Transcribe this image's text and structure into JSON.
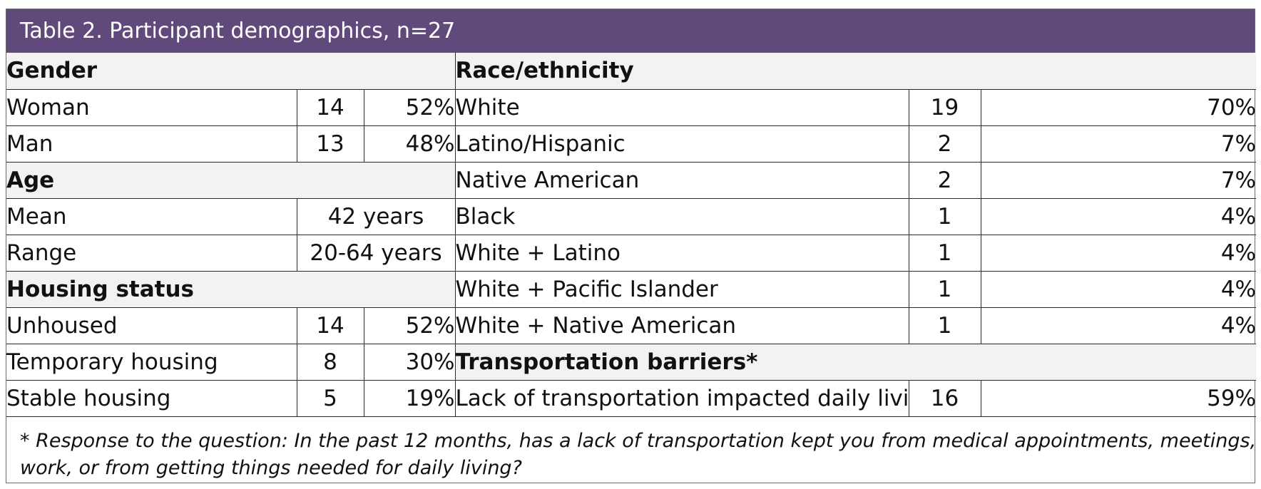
{
  "title": "Table 2. Participant demographics, n=27",
  "left": {
    "gender": {
      "heading": "Gender",
      "rows": [
        {
          "label": "Woman",
          "n": "14",
          "pct": "52%"
        },
        {
          "label": "Man",
          "n": "13",
          "pct": "48%"
        }
      ]
    },
    "age": {
      "heading": "Age",
      "rows": [
        {
          "label": "Mean",
          "value": "42 years"
        },
        {
          "label": "Range",
          "value": "20-64 years"
        }
      ]
    },
    "housing": {
      "heading": "Housing status",
      "rows": [
        {
          "label": "Unhoused",
          "n": "14",
          "pct": "52%"
        },
        {
          "label": "Temporary housing",
          "n": "8",
          "pct": "30%"
        },
        {
          "label": "Stable housing",
          "n": "5",
          "pct": "19%"
        }
      ]
    }
  },
  "right": {
    "race": {
      "heading": "Race/ethnicity",
      "rows": [
        {
          "label": "White",
          "n": "19",
          "pct": "70%"
        },
        {
          "label": "Latino/Hispanic",
          "n": "2",
          "pct": "7%"
        },
        {
          "label": "Native American",
          "n": "2",
          "pct": "7%"
        },
        {
          "label": "Black",
          "n": "1",
          "pct": "4%"
        },
        {
          "label": "White + Latino",
          "n": "1",
          "pct": "4%"
        },
        {
          "label": "White + Pacific Islander",
          "n": "1",
          "pct": "4%"
        },
        {
          "label": "White + Native American",
          "n": "1",
          "pct": "4%"
        }
      ]
    },
    "transport": {
      "heading": "Transportation barriers*",
      "rows": [
        {
          "label": "Lack of transportation impacted daily living",
          "n": "16",
          "pct": "59%"
        }
      ]
    }
  },
  "footnote": {
    "line1": "* Response to the question: In the past 12 months, has a lack of transportation kept you from medical appointments, meetings,",
    "line2": "work, or from getting things needed for daily living?"
  },
  "colors": {
    "title_bar": "#604a7b",
    "heading_bg": "#f2f2f2"
  }
}
